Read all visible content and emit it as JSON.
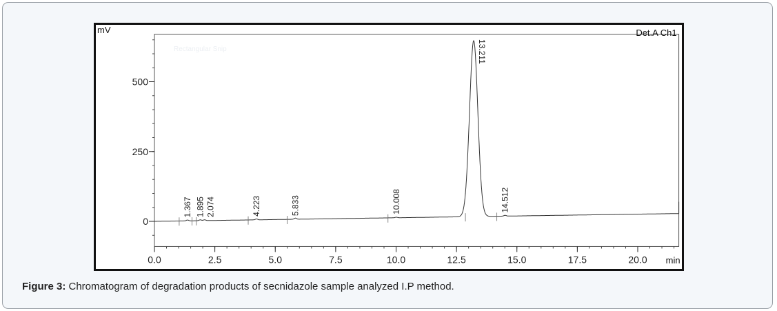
{
  "caption": {
    "label": "Figure 3:",
    "text": " Chromatogram of degradation products of secnidazole sample analyzed I.P method."
  },
  "watermark": "Rectangular Snip",
  "chart_data": {
    "type": "line",
    "title": "",
    "channel_label": "Det.A Ch1",
    "xlabel": "min",
    "ylabel": "mV",
    "xlim": [
      0,
      21.7
    ],
    "ylim": [
      -90,
      670
    ],
    "x_ticks": [
      "0.0",
      "2.5",
      "5.0",
      "7.5",
      "10.0",
      "12.5",
      "15.0",
      "17.5",
      "20.0"
    ],
    "y_ticks": [
      "0",
      "250",
      "500"
    ],
    "grid": false,
    "line_color": "#333333",
    "baseline": {
      "start_mV": 0,
      "end_mV": 28
    },
    "peaks": [
      {
        "rt": 1.367,
        "label": "1.367",
        "height_mV": 3
      },
      {
        "rt": 1.895,
        "label": "1.895",
        "height_mV": 3
      },
      {
        "rt": 2.074,
        "label": "2.074",
        "height_mV": 3
      },
      {
        "rt": 4.223,
        "label": "4.223",
        "height_mV": 3
      },
      {
        "rt": 5.833,
        "label": "5.833",
        "height_mV": 4
      },
      {
        "rt": 10.008,
        "label": "10.008",
        "height_mV": 2
      },
      {
        "rt": 13.211,
        "label": "13.211",
        "height_mV": 630
      },
      {
        "rt": 14.512,
        "label": "14.512",
        "height_mV": 3
      }
    ]
  }
}
